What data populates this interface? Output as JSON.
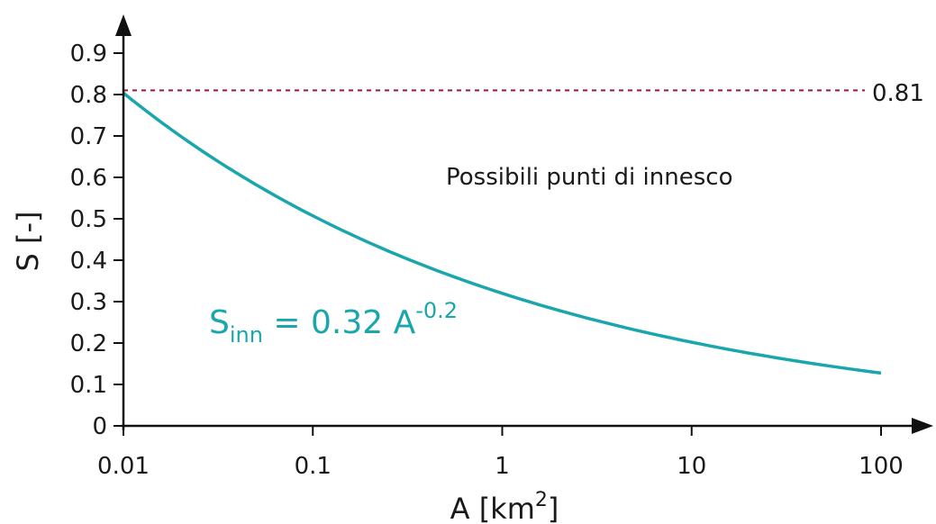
{
  "chart_data": {
    "type": "line",
    "xlabel_base": "A [km",
    "xlabel_sup": "2",
    "xlabel_end": "]",
    "ylabel": "S [-]",
    "x_scale": "log",
    "xlim": [
      0.01,
      100
    ],
    "ylim": [
      0,
      0.95
    ],
    "x_ticks": [
      "0.01",
      "0.1",
      "1",
      "10",
      "100"
    ],
    "y_ticks": [
      "0",
      "0.1",
      "0.2",
      "0.3",
      "0.4",
      "0.5",
      "0.6",
      "0.7",
      "0.8",
      "0.9"
    ],
    "grid": false,
    "series": [
      {
        "formula_coefficient": 0.32,
        "formula_exponent": -0.2,
        "color": "#1aa6ad",
        "x": [
          0.01,
          0.03,
          0.1,
          0.3,
          1,
          3,
          10,
          30,
          100
        ],
        "y": [
          0.8,
          0.64,
          0.51,
          0.41,
          0.32,
          0.26,
          0.2,
          0.16,
          0.13
        ]
      }
    ],
    "threshold": {
      "value": 0.81,
      "label": "0.81",
      "color": "#a0153e"
    },
    "equation": {
      "base": "S",
      "sub": "inn",
      "mid": " = 0.32 A",
      "sup": "-0.2"
    },
    "annotation": "Possibili punti di innesco"
  }
}
